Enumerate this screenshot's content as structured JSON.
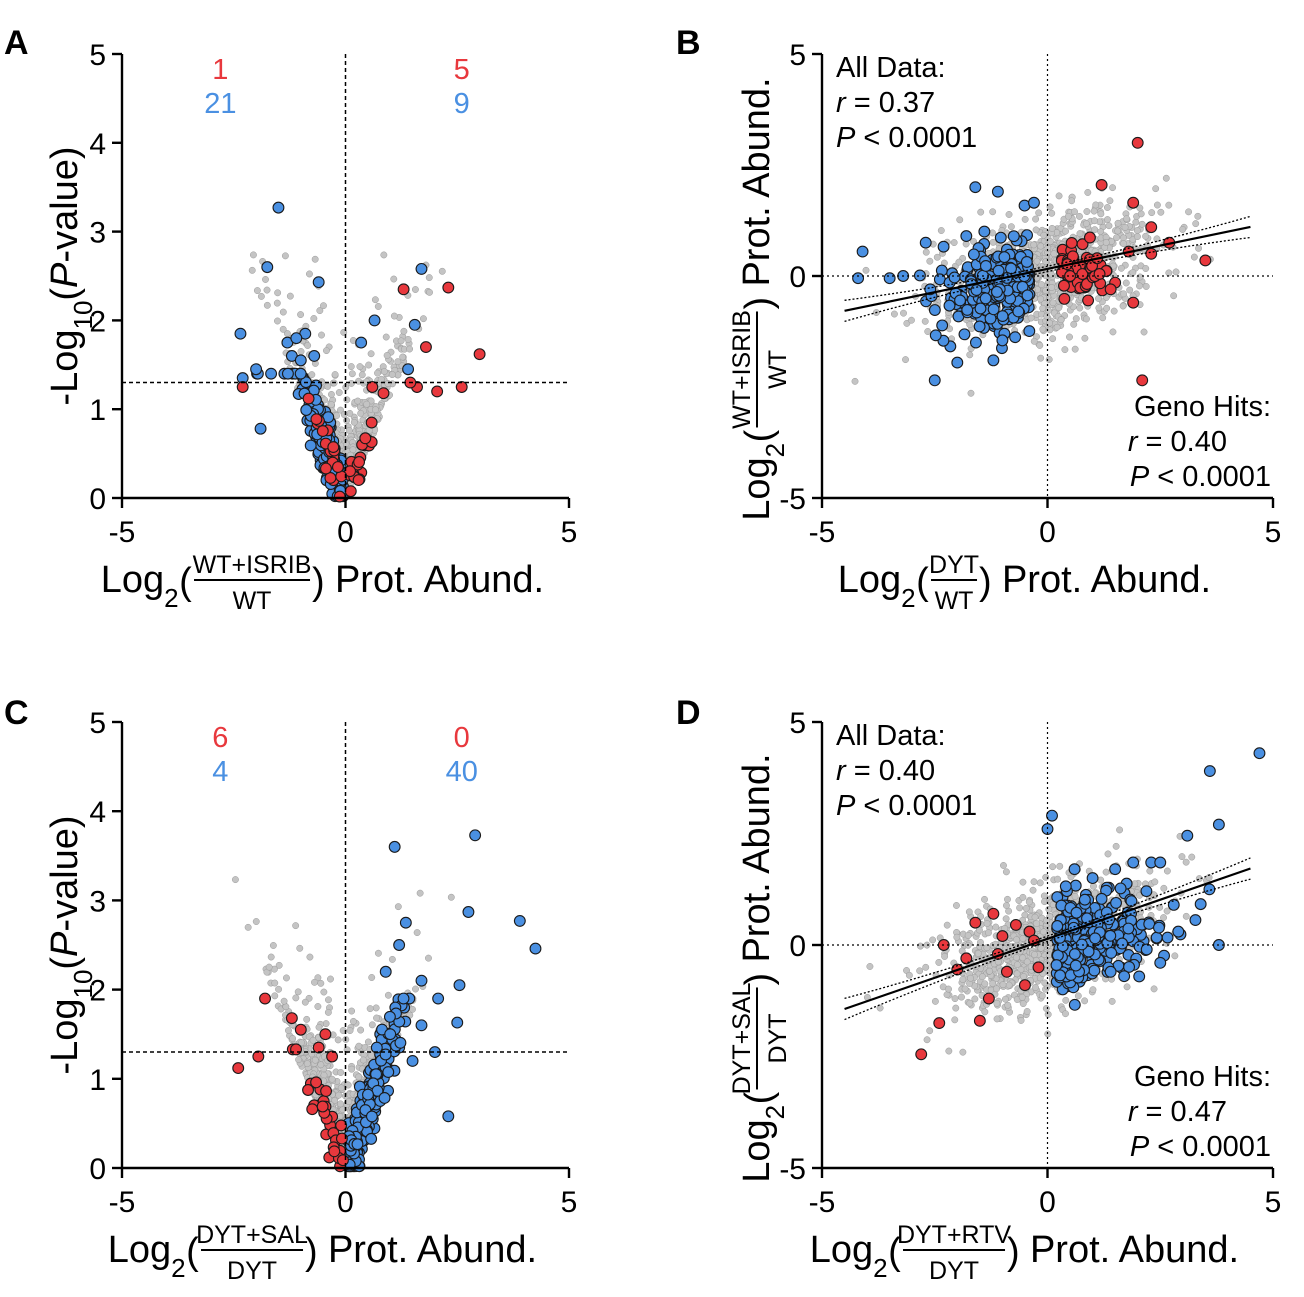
{
  "colors": {
    "red": "#e8383d",
    "blue": "#4a90e2",
    "grey": "#c4c4c4",
    "outline": "#1a1a1a"
  },
  "chart_data": [
    {
      "panel": "A",
      "type": "scatter",
      "variant": "volcano",
      "xlim": [
        -5,
        5
      ],
      "ylim": [
        0,
        5
      ],
      "xticks": [
        "-5",
        "0",
        "5"
      ],
      "yticks": [
        "0",
        "1",
        "2",
        "3",
        "4",
        "5"
      ],
      "ylabel": {
        "prefix": "-Log",
        "sub": "10",
        "open": "(",
        "ital": "P",
        "rest": "-value)"
      },
      "xlabel": {
        "prefix": "Log",
        "sub": "2",
        "num": "WT+ISRIB",
        "den": "WT",
        "suffix": "Prot. Abund."
      },
      "threshold_y": 1.3,
      "counts": {
        "left_red": "1",
        "left_blue": "21",
        "right_red": "5",
        "right_blue": "9"
      },
      "highlight": {
        "red": [
          [
            -2.3,
            1.25
          ],
          [
            1.3,
            2.35
          ],
          [
            2.3,
            2.37
          ],
          [
            3.0,
            1.62
          ],
          [
            1.8,
            1.7
          ],
          [
            0.6,
            1.25
          ],
          [
            1.6,
            1.25
          ],
          [
            2.05,
            1.2
          ],
          [
            2.6,
            1.25
          ],
          [
            1.45,
            1.3
          ],
          [
            0.85,
            1.18
          ]
        ],
        "blue": [
          [
            -1.5,
            3.27
          ],
          [
            -1.75,
            2.6
          ],
          [
            -0.6,
            2.43
          ],
          [
            -2.35,
            1.85
          ],
          [
            -1.3,
            1.75
          ],
          [
            -0.9,
            1.85
          ],
          [
            -1.1,
            1.8
          ],
          [
            1.7,
            2.58
          ],
          [
            1.55,
            1.95
          ],
          [
            0.65,
            2.0
          ],
          [
            1.4,
            1.45
          ],
          [
            -2.3,
            1.35
          ],
          [
            -1.9,
            0.78
          ],
          [
            -1.2,
            1.6
          ],
          [
            -0.7,
            1.6
          ],
          [
            -2.0,
            1.45
          ],
          [
            0.35,
            1.75
          ],
          [
            -1.0,
            1.55
          ]
        ]
      }
    },
    {
      "panel": "B",
      "type": "scatter",
      "variant": "correlation",
      "xlim": [
        -5,
        5
      ],
      "ylim": [
        -5,
        5
      ],
      "xticks": [
        "-5",
        "0",
        "5"
      ],
      "yticks": [
        "-5",
        "0",
        "5"
      ],
      "ylabel": {
        "prefix": "Log",
        "sub": "2",
        "num": "WT+ISRIB",
        "den": "WT",
        "suffix": "Prot. Abund."
      },
      "xlabel": {
        "prefix": "Log",
        "sub": "2",
        "num": "DYT",
        "den": "WT",
        "suffix": "Prot. Abund."
      },
      "fit": {
        "slope": 0.21,
        "intercept": 0.16,
        "x": [
          -4.5,
          4.5
        ]
      },
      "stats_all": {
        "title": "All Data:",
        "r": "r",
        "r_val": " = 0.37",
        "p": "P",
        "p_val": " < 0.0001"
      },
      "stats_hits": {
        "title": "Geno Hits:",
        "r": "r",
        "r_val": " = 0.40",
        "p": "P",
        "p_val": " < 0.0001"
      },
      "highlight": {
        "red": [
          [
            2.0,
            3.0
          ],
          [
            1.2,
            2.05
          ],
          [
            1.9,
            1.65
          ],
          [
            2.3,
            1.1
          ],
          [
            2.7,
            0.75
          ],
          [
            3.5,
            0.35
          ],
          [
            1.8,
            0.55
          ],
          [
            2.1,
            -2.35
          ],
          [
            0.9,
            -0.55
          ],
          [
            1.5,
            -0.15
          ],
          [
            1.9,
            -0.6
          ],
          [
            2.3,
            0.5
          ],
          [
            1.1,
            0.4
          ],
          [
            0.5,
            0.0
          ],
          [
            1.4,
            -0.3
          ]
        ],
        "blue": [
          [
            -4.1,
            0.55
          ],
          [
            -4.2,
            -0.05
          ],
          [
            -3.5,
            -0.05
          ],
          [
            -1.6,
            2.0
          ],
          [
            -1.1,
            1.9
          ],
          [
            -0.3,
            1.65
          ],
          [
            -1.4,
            1.0
          ],
          [
            -2.5,
            -2.35
          ],
          [
            -2.0,
            -1.95
          ],
          [
            -2.7,
            0.75
          ],
          [
            -1.2,
            -1.9
          ],
          [
            -2.6,
            -0.3
          ],
          [
            -1.0,
            -1.45
          ],
          [
            -3.2,
            0.0
          ],
          [
            -1.8,
            0.9
          ]
        ]
      }
    },
    {
      "panel": "C",
      "type": "scatter",
      "variant": "volcano",
      "xlim": [
        -5,
        5
      ],
      "ylim": [
        0,
        5
      ],
      "xticks": [
        "-5",
        "0",
        "5"
      ],
      "yticks": [
        "0",
        "1",
        "2",
        "3",
        "4",
        "5"
      ],
      "ylabel": {
        "prefix": "-Log",
        "sub": "10",
        "open": "(",
        "ital": "P",
        "rest": "-value)"
      },
      "xlabel": {
        "prefix": "Log",
        "sub": "2",
        "num": "DYT+SAL",
        "den": "DYT",
        "suffix": "Prot. Abund."
      },
      "threshold_y": 1.3,
      "counts": {
        "left_red": "6",
        "left_blue": "4",
        "right_red": "0",
        "right_blue": "40"
      },
      "highlight": {
        "red": [
          [
            -1.8,
            1.9
          ],
          [
            -1.2,
            1.68
          ],
          [
            -2.4,
            1.12
          ],
          [
            -1.95,
            1.25
          ],
          [
            -1.0,
            1.55
          ],
          [
            -0.6,
            1.35
          ],
          [
            -0.3,
            1.25
          ],
          [
            -0.45,
            1.5
          ]
        ],
        "blue": [
          [
            1.1,
            3.6
          ],
          [
            2.9,
            3.73
          ],
          [
            3.9,
            2.77
          ],
          [
            4.25,
            2.46
          ],
          [
            2.75,
            2.87
          ],
          [
            1.35,
            2.75
          ],
          [
            2.55,
            2.05
          ],
          [
            1.7,
            2.1
          ],
          [
            2.3,
            0.58
          ],
          [
            2.5,
            1.63
          ],
          [
            0.9,
            2.2
          ],
          [
            1.2,
            2.5
          ],
          [
            1.0,
            1.5
          ],
          [
            1.5,
            1.2
          ],
          [
            0.7,
            1.35
          ],
          [
            2.0,
            1.3
          ],
          [
            1.7,
            1.6
          ]
        ]
      }
    },
    {
      "panel": "D",
      "type": "scatter",
      "variant": "correlation",
      "xlim": [
        -5,
        5
      ],
      "ylim": [
        -5,
        5
      ],
      "xticks": [
        "-5",
        "0",
        "5"
      ],
      "yticks": [
        "-5",
        "0",
        "5"
      ],
      "ylabel": {
        "prefix": "Log",
        "sub": "2",
        "num": "DYT+SAL",
        "den": "DYT",
        "suffix": "Prot. Abund."
      },
      "xlabel": {
        "prefix": "Log",
        "sub": "2",
        "num": "DYT+RTV",
        "den": "DYT",
        "suffix": "Prot. Abund."
      },
      "fit": {
        "slope": 0.35,
        "intercept": 0.14,
        "x": [
          -4.5,
          4.5
        ]
      },
      "stats_all": {
        "title": "All Data:",
        "r": "r",
        "r_val": " = 0.40",
        "p": "P",
        "p_val": " < 0.0001"
      },
      "stats_hits": {
        "title": "Geno Hits:",
        "r": "r",
        "r_val": " = 0.47",
        "p": "P",
        "p_val": " < 0.0001"
      },
      "highlight": {
        "red": [
          [
            -2.8,
            -2.45
          ],
          [
            -2.4,
            -1.75
          ],
          [
            -1.2,
            0.7
          ],
          [
            -1.6,
            0.5
          ],
          [
            -2.3,
            0.0
          ],
          [
            -1.8,
            -0.3
          ],
          [
            -1.3,
            -1.2
          ],
          [
            -0.9,
            -0.6
          ],
          [
            -0.4,
            0.3
          ],
          [
            -0.2,
            -0.5
          ],
          [
            -1.0,
            0.2
          ],
          [
            -0.7,
            0.45
          ],
          [
            -2.0,
            -0.55
          ],
          [
            -1.5,
            -1.7
          ],
          [
            -0.5,
            -0.9
          ],
          [
            -1.1,
            -0.2
          ],
          [
            -0.3,
            0.1
          ]
        ],
        "blue": [
          [
            4.7,
            4.3
          ],
          [
            3.6,
            3.9
          ],
          [
            3.8,
            2.7
          ],
          [
            3.1,
            2.45
          ],
          [
            3.8,
            0.0
          ],
          [
            2.9,
            0.3
          ],
          [
            0.1,
            2.9
          ],
          [
            0.0,
            2.6
          ],
          [
            2.3,
            1.85
          ],
          [
            2.5,
            1.85
          ],
          [
            1.9,
            1.85
          ],
          [
            1.5,
            1.7
          ],
          [
            0.6,
            1.7
          ],
          [
            1.0,
            1.5
          ],
          [
            2.8,
            0.9
          ],
          [
            2.2,
            -0.1
          ],
          [
            1.4,
            -0.6
          ],
          [
            0.2,
            -0.45
          ],
          [
            1.7,
            -0.7
          ],
          [
            2.5,
            -0.4
          ]
        ]
      }
    }
  ]
}
